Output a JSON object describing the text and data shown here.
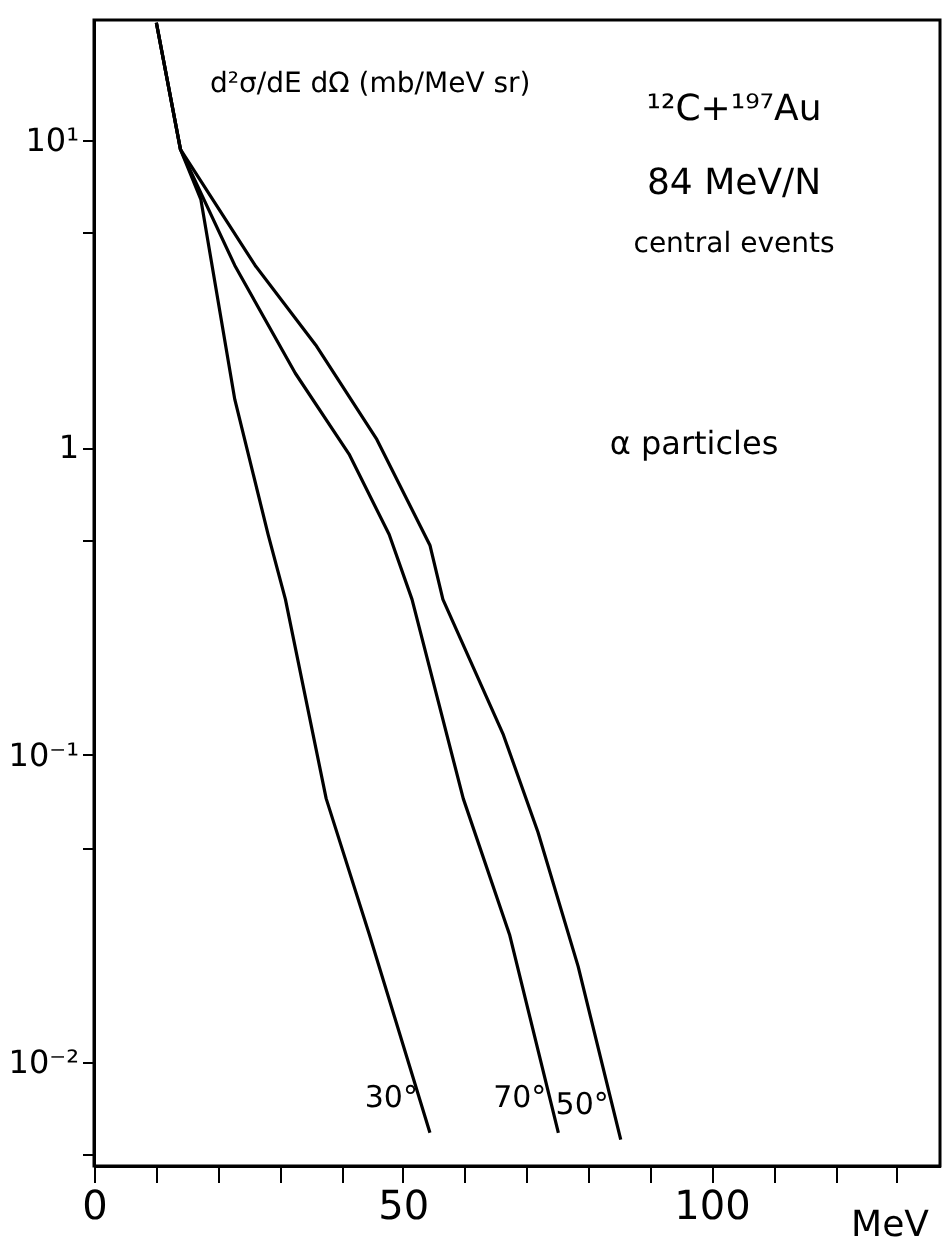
{
  "chart_data": {
    "type": "line",
    "ylabel": "d²σ/dE dΩ (mb/MeV sr)",
    "xlabel": "MeV",
    "annotations": [
      "¹²C+¹⁹⁷Au",
      "84 MeV/N",
      "central events",
      "α particles"
    ],
    "log": "y",
    "grid": false,
    "marker": "none",
    "line_style": "solid",
    "xlim": [
      0,
      137
    ],
    "ylim": [
      0.0046,
      24.5
    ],
    "xticks": [
      0,
      {
        "value": 10,
        "label": null
      },
      {
        "value": 20,
        "label": null
      },
      {
        "value": 30,
        "label": null
      },
      {
        "value": 40,
        "label": null
      },
      50,
      {
        "value": 60,
        "label": null
      },
      {
        "value": 70,
        "label": null
      },
      {
        "value": 80,
        "label": null
      },
      {
        "value": 90,
        "label": null
      },
      100,
      {
        "value": 110,
        "label": null
      },
      {
        "value": 120,
        "label": null
      },
      {
        "value": 130,
        "label": null
      }
    ],
    "yticks": [
      {
        "value": 0.005,
        "label": null
      },
      {
        "value": 0.01,
        "label": "10⁻²"
      },
      {
        "value": 0.05,
        "label": null
      },
      {
        "value": 0.1,
        "label": "10⁻¹"
      },
      {
        "value": 0.5,
        "label": null
      },
      1,
      {
        "value": 5,
        "label": null
      },
      {
        "value": 10,
        "label": "10¹"
      }
    ],
    "series": [
      {
        "name": "30°",
        "color": "#000000",
        "x": [
          10.1,
          14,
          17.3,
          22.8,
          28.2,
          31,
          37.6,
          44.6,
          54.4
        ],
        "values": [
          24,
          9.3,
          6.4,
          1.43,
          0.52,
          0.32,
          0.072,
          0.026,
          0.0059
        ]
      },
      {
        "name": "70°",
        "color": "#000000",
        "x": [
          10.1,
          14,
          22.8,
          32.6,
          41.3,
          47.8,
          51.5,
          59.8,
          67.3,
          75.2
        ],
        "values": [
          24,
          9.3,
          3.9,
          1.74,
          0.95,
          0.52,
          0.32,
          0.072,
          0.026,
          0.0059
        ]
      },
      {
        "name": "50°",
        "color": "#000000",
        "x": [
          10.1,
          14,
          26.1,
          35.9,
          45.8,
          54.4,
          56.5,
          66.3,
          71.9,
          78.4,
          85.3
        ],
        "values": [
          24,
          9.3,
          3.9,
          2.15,
          1.06,
          0.48,
          0.32,
          0.116,
          0.056,
          0.0205,
          0.0056
        ]
      }
    ]
  }
}
